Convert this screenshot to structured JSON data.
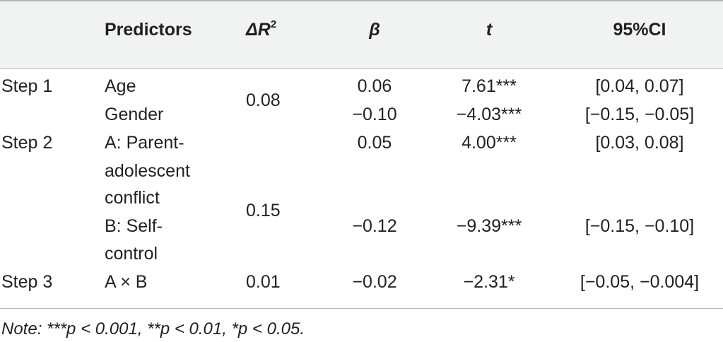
{
  "header": {
    "predictors": "Predictors",
    "delta_r2_prefix": "ΔR",
    "delta_r2_sup": "2",
    "beta": "β",
    "t": "t",
    "ci": "95%CI"
  },
  "rows": {
    "step1": {
      "label": "Step 1",
      "p1": "Age",
      "p2": "Gender",
      "r2": "0.08",
      "b1": "0.06",
      "b2": "−0.10",
      "t1": "7.61***",
      "t2": "−4.03***",
      "ci1": "[0.04, 0.07]",
      "ci2": "[−0.15, −0.05]"
    },
    "step2": {
      "label": "Step 2",
      "p1a": "A: Parent-",
      "p1b": "adolescent",
      "p1c": "conflict",
      "p2a": "B: Self-",
      "p2b": "control",
      "r2": "0.15",
      "b1": "0.05",
      "b2": "−0.12",
      "t1": "4.00***",
      "t2": "−9.39***",
      "ci1": "[0.03, 0.08]",
      "ci2": "[−0.15, −0.10]"
    },
    "step3": {
      "label": "Step 3",
      "p1": "A × B",
      "r2": "0.01",
      "b1": "−0.02",
      "t1": "−2.31*",
      "ci1": "[−0.05, −0.004]"
    }
  },
  "note": "Note: ***p < 0.001, **p < 0.01, *p < 0.05."
}
